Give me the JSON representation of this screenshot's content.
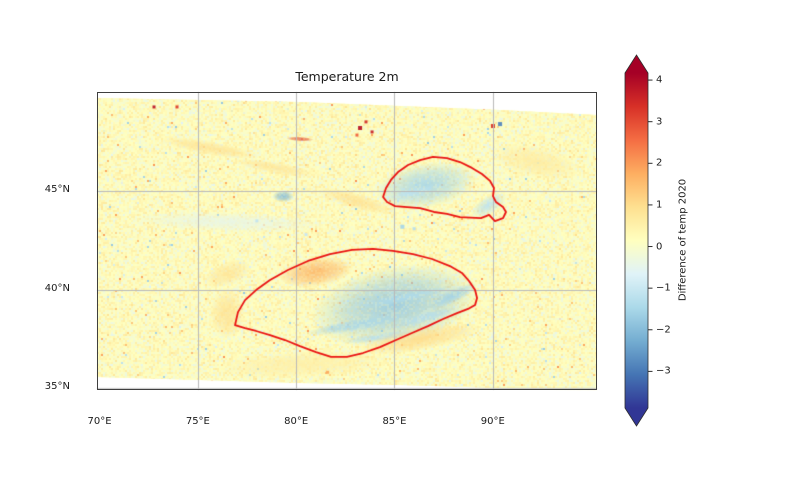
{
  "chart_data": {
    "type": "heatmap",
    "title": "Temperature 2m",
    "xlabel": "",
    "ylabel": "",
    "extent": {
      "lon": [
        69.87,
        95.3
      ],
      "lat": [
        34.9,
        50.05
      ]
    },
    "x_ticks": [
      {
        "lon": 70,
        "label": "70°E"
      },
      {
        "lon": 75,
        "label": "75°E"
      },
      {
        "lon": 80,
        "label": "80°E"
      },
      {
        "lon": 85,
        "label": "85°E"
      },
      {
        "lon": 90,
        "label": "90°E"
      }
    ],
    "y_ticks": [
      {
        "lat": 45,
        "label": "45°N"
      },
      {
        "lat": 40,
        "label": "40°N"
      },
      {
        "lat": 35,
        "label": "35°N"
      }
    ],
    "gridlines": {
      "color": "#b9b9b9",
      "lons": [
        75,
        80,
        85,
        90
      ],
      "lats": [
        35,
        40,
        45
      ]
    },
    "colormap": {
      "name": "RdYlBu_r",
      "vmin": -3.88,
      "vmax": 4.17,
      "colors": [
        "#313695",
        "#4575b4",
        "#74add1",
        "#abd9e9",
        "#e0f3f8",
        "#ffffbf",
        "#fee090",
        "#fdae61",
        "#f46d43",
        "#d73027",
        "#a50026"
      ]
    },
    "colorbar": {
      "label": "Difference of temp 2020",
      "extend": "both",
      "ticks": [
        {
          "v": 4,
          "label": "4"
        },
        {
          "v": 3,
          "label": "3"
        },
        {
          "v": 2,
          "label": "2"
        },
        {
          "v": 1,
          "label": "1"
        },
        {
          "v": 0,
          "label": "0"
        },
        {
          "v": -1,
          "label": "−1"
        },
        {
          "v": -2,
          "label": "−2"
        },
        {
          "v": -3,
          "label": "−3"
        }
      ]
    },
    "base_value": 0.25,
    "noise": {
      "seed": 11,
      "cell": 2,
      "bias": 0.17,
      "sigma": 0.26,
      "outlier_prob": 0.015,
      "second_pass_alpha": 0.22
    },
    "boundary": [
      [
        69.87,
        49.74
      ],
      [
        75.11,
        49.64
      ],
      [
        80.19,
        49.54
      ],
      [
        85.28,
        49.34
      ],
      [
        90.37,
        49.14
      ],
      [
        95.3,
        48.88
      ],
      [
        95.3,
        34.9
      ],
      [
        90.37,
        35.0
      ],
      [
        85.28,
        35.15
      ],
      [
        80.19,
        35.26
      ],
      [
        75.11,
        35.41
      ],
      [
        69.87,
        35.56
      ]
    ],
    "contours": {
      "color": "#ea1111",
      "width": 1.8,
      "regions": [
        {
          "name": "north-basin-outline",
          "points": [
            [
              84.42,
              44.71
            ],
            [
              84.57,
              45.17
            ],
            [
              84.82,
              45.58
            ],
            [
              85.18,
              45.98
            ],
            [
              85.69,
              46.34
            ],
            [
              86.3,
              46.59
            ],
            [
              86.96,
              46.75
            ],
            [
              87.67,
              46.69
            ],
            [
              88.33,
              46.49
            ],
            [
              88.94,
              46.19
            ],
            [
              89.45,
              45.88
            ],
            [
              89.86,
              45.53
            ],
            [
              90.06,
              45.17
            ],
            [
              90.01,
              44.76
            ],
            [
              90.16,
              44.46
            ],
            [
              90.52,
              44.2
            ],
            [
              90.67,
              43.95
            ],
            [
              90.52,
              43.64
            ],
            [
              90.11,
              43.49
            ],
            [
              89.81,
              43.8
            ],
            [
              89.4,
              43.64
            ],
            [
              88.33,
              43.69
            ],
            [
              87.67,
              43.85
            ],
            [
              87.01,
              43.95
            ],
            [
              86.3,
              44.15
            ],
            [
              85.64,
              44.2
            ],
            [
              85.03,
              44.25
            ],
            [
              84.62,
              44.46
            ]
          ]
        },
        {
          "name": "south-basin-outline",
          "points": [
            [
              76.89,
              38.2
            ],
            [
              77.04,
              38.86
            ],
            [
              77.4,
              39.47
            ],
            [
              77.96,
              39.98
            ],
            [
              78.67,
              40.49
            ],
            [
              79.58,
              41.0
            ],
            [
              80.6,
              41.46
            ],
            [
              81.72,
              41.81
            ],
            [
              82.84,
              42.02
            ],
            [
              83.91,
              42.07
            ],
            [
              84.92,
              41.97
            ],
            [
              85.94,
              41.81
            ],
            [
              86.91,
              41.56
            ],
            [
              87.82,
              41.2
            ],
            [
              88.43,
              40.85
            ],
            [
              88.79,
              40.44
            ],
            [
              89.1,
              39.98
            ],
            [
              89.2,
              39.58
            ],
            [
              89.1,
              39.22
            ],
            [
              88.74,
              39.02
            ],
            [
              88.18,
              38.81
            ],
            [
              87.47,
              38.51
            ],
            [
              86.7,
              38.15
            ],
            [
              85.89,
              37.8
            ],
            [
              85.08,
              37.44
            ],
            [
              84.26,
              37.08
            ],
            [
              83.4,
              36.78
            ],
            [
              82.58,
              36.58
            ],
            [
              81.77,
              36.58
            ],
            [
              81.01,
              36.83
            ],
            [
              80.19,
              37.13
            ],
            [
              79.43,
              37.44
            ],
            [
              78.67,
              37.69
            ],
            [
              77.96,
              37.9
            ],
            [
              77.4,
              38.05
            ]
          ]
        }
      ]
    },
    "features": [
      {
        "name": "north-basin-cooling",
        "lon": 86.6,
        "lat": 45.3,
        "rx": 2.6,
        "ry": 1.15,
        "rot": -10,
        "v": -1.5
      },
      {
        "name": "north-basin-streak-1",
        "lon": 85.8,
        "lat": 44.9,
        "rx": 1.4,
        "ry": 0.25,
        "rot": -15,
        "v": -1.2
      },
      {
        "name": "north-basin-streak-2",
        "lon": 89.8,
        "lat": 44.3,
        "rx": 1.0,
        "ry": 0.45,
        "rot": -30,
        "v": -1.2
      },
      {
        "name": "south-basin-cooling",
        "lon": 85.0,
        "lat": 39.2,
        "rx": 4.3,
        "ry": 2.0,
        "rot": -10,
        "v": -1.7
      },
      {
        "name": "south-basin-streak-1",
        "lon": 83.0,
        "lat": 38.2,
        "rx": 2.6,
        "ry": 0.3,
        "rot": -10,
        "v": -1.5
      },
      {
        "name": "south-basin-streak-2",
        "lon": 85.5,
        "lat": 39.6,
        "rx": 2.3,
        "ry": 0.25,
        "rot": -12,
        "v": -1.4
      },
      {
        "name": "south-basin-streak-3",
        "lon": 84.3,
        "lat": 37.6,
        "rx": 2.0,
        "ry": 0.22,
        "rot": -8,
        "v": -1.3
      },
      {
        "name": "south-basin-streak-4",
        "lon": 88.0,
        "lat": 39.7,
        "rx": 1.3,
        "ry": 0.35,
        "rot": -25,
        "v": -1.6
      },
      {
        "name": "south-basin-streak-5",
        "lon": 86.6,
        "lat": 38.6,
        "rx": 1.8,
        "ry": 0.25,
        "rot": -15,
        "v": -1.3
      },
      {
        "name": "south-basin-warm-nw",
        "lon": 81.0,
        "lat": 40.9,
        "rx": 1.9,
        "ry": 0.75,
        "rot": -8,
        "v": 1.6
      },
      {
        "name": "warm-west-of-south-basin",
        "lon": 76.5,
        "lat": 38.8,
        "rx": 0.9,
        "ry": 1.3,
        "rot": 0,
        "v": 0.9
      },
      {
        "name": "warm-nw-of-south-basin",
        "lon": 76.5,
        "lat": 40.8,
        "rx": 1.3,
        "ry": 0.6,
        "rot": -20,
        "v": 0.8
      },
      {
        "name": "warm-south-band",
        "lon": 86.3,
        "lat": 37.5,
        "rx": 3.2,
        "ry": 0.6,
        "rot": -10,
        "v": 1.0
      },
      {
        "name": "warm-far-south-band",
        "lon": 80.3,
        "lat": 36.2,
        "rx": 4.5,
        "ry": 0.7,
        "rot": -3,
        "v": 0.55
      },
      {
        "name": "warm-streak-northwest-1",
        "lon": 75.6,
        "lat": 47.2,
        "rx": 2.6,
        "ry": 0.35,
        "rot": 10,
        "v": 0.9
      },
      {
        "name": "warm-streak-northwest-2",
        "lon": 78.9,
        "lat": 46.2,
        "rx": 2.2,
        "ry": 0.3,
        "rot": 10,
        "v": 0.8
      },
      {
        "name": "warm-streak-central",
        "lon": 83.1,
        "lat": 44.5,
        "rx": 2.1,
        "ry": 0.4,
        "rot": 16,
        "v": 0.9
      },
      {
        "name": "warm-northeast",
        "lon": 92.2,
        "lat": 46.5,
        "rx": 2.3,
        "ry": 0.8,
        "rot": 12,
        "v": 0.65
      },
      {
        "name": "hot-streak-north",
        "lon": 80.2,
        "lat": 47.66,
        "rx": 0.7,
        "ry": 0.12,
        "rot": 3,
        "v": 3.0
      },
      {
        "name": "cool-patch-west",
        "lon": 79.35,
        "lat": 44.75,
        "rx": 0.55,
        "ry": 0.3,
        "rot": 0,
        "v": -2.0
      },
      {
        "name": "cool-band-west",
        "lon": 76.6,
        "lat": 43.44,
        "rx": 5.0,
        "ry": 0.5,
        "rot": 2,
        "v": -0.45
      }
    ],
    "speckles": [
      {
        "lon": 72.77,
        "lat": 49.29,
        "v": 3.8,
        "size": 3
      },
      {
        "lon": 73.94,
        "lat": 49.29,
        "v": 3.2,
        "size": 3
      },
      {
        "lon": 83.25,
        "lat": 48.22,
        "v": 3.8,
        "size": 4
      },
      {
        "lon": 83.55,
        "lat": 48.53,
        "v": 3.4,
        "size": 3
      },
      {
        "lon": 83.86,
        "lat": 48.02,
        "v": 3.6,
        "size": 3
      },
      {
        "lon": 83.09,
        "lat": 47.86,
        "v": 2.7,
        "size": 3
      },
      {
        "lon": 90.01,
        "lat": 48.32,
        "v": 3.3,
        "size": 4
      },
      {
        "lon": 90.37,
        "lat": 48.42,
        "v": -2.8,
        "size": 4
      },
      {
        "lon": 85.4,
        "lat": 43.2,
        "v": -1.5,
        "size": 4
      },
      {
        "lon": 86.0,
        "lat": 43.1,
        "v": -1.3,
        "size": 3
      },
      {
        "lon": 78.0,
        "lat": 43.5,
        "v": -1.1,
        "size": 3
      },
      {
        "lon": 80.5,
        "lat": 42.8,
        "v": -1.0,
        "size": 3
      },
      {
        "lon": 81.6,
        "lat": 35.8,
        "v": 1.8,
        "size": 3
      }
    ]
  }
}
